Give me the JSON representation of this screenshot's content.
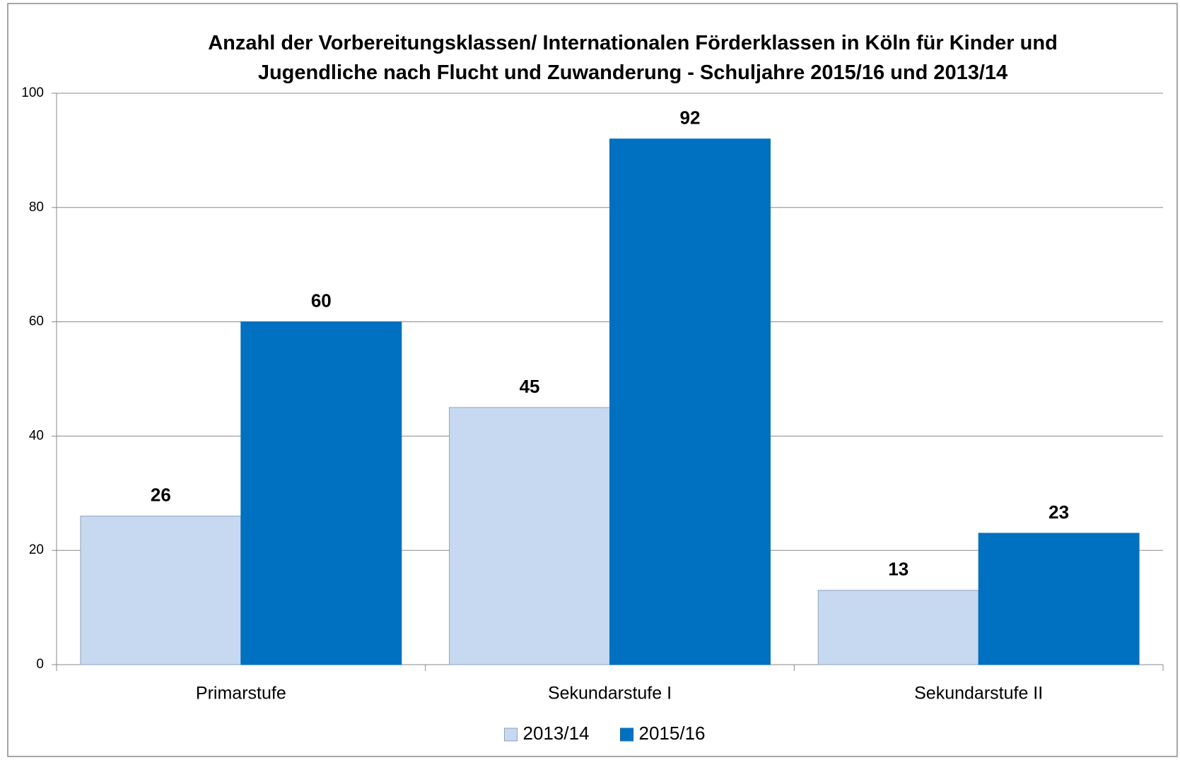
{
  "chart_data": {
    "type": "bar",
    "title": "Anzahl der Vorbereitungsklassen/ Internationalen Förderklassen in Köln für Kinder und Jugendliche nach Flucht und Zuwanderung - Schuljahre 2015/16 und 2013/14",
    "categories": [
      "Primarstufe",
      "Sekundarstufe I",
      "Sekundarstufe II"
    ],
    "series": [
      {
        "name": "2013/14",
        "color": "#c6d9f1",
        "values": [
          26,
          45,
          13
        ]
      },
      {
        "name": "2015/16",
        "color": "#0070c0",
        "values": [
          60,
          92,
          23
        ]
      }
    ],
    "ylim": [
      0,
      100
    ],
    "yticks": [
      0,
      20,
      40,
      60,
      80,
      100
    ],
    "grid": true,
    "legend": "bottom"
  }
}
